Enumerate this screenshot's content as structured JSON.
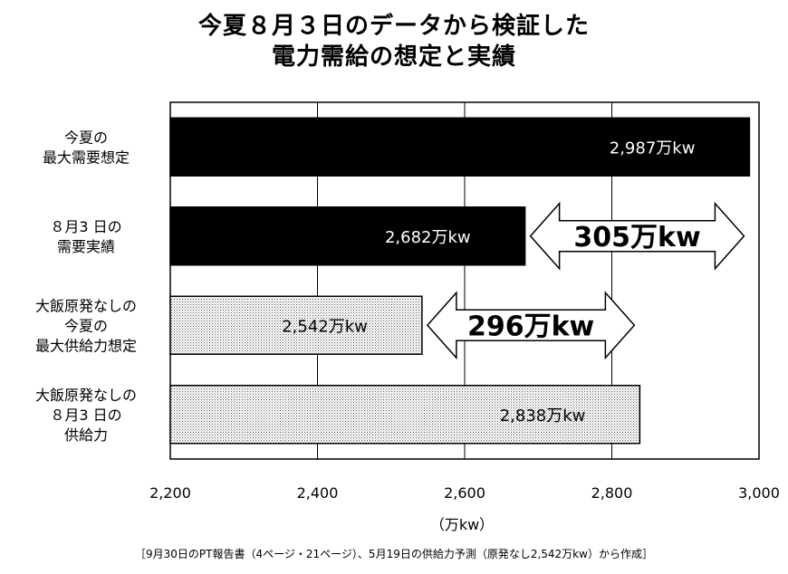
{
  "chart_data": {
    "type": "bar",
    "orientation": "horizontal",
    "title_lines": [
      "今夏８月３日のデータから検証した",
      "電力需給の想定と実績"
    ],
    "categories": [
      [
        "今夏の",
        "最大需要想定"
      ],
      [
        "８月3 日の",
        "需要実績"
      ],
      [
        "大飯原発なしの",
        "今夏の",
        "最大供給力想定"
      ],
      [
        "大飯原発なしの",
        "８月3 日の",
        "供給力"
      ]
    ],
    "values": [
      2987,
      2682,
      2542,
      2838
    ],
    "value_labels": [
      "2,987万kw",
      "2,682万kw",
      "2,542万kw",
      "2,838万kw"
    ],
    "bar_fills": [
      "#000000",
      "#000000",
      "dotted",
      "dotted"
    ],
    "xlim": [
      2200,
      3000
    ],
    "xticks": [
      2200,
      2400,
      2600,
      2800,
      3000
    ],
    "xtick_labels": [
      "2,200",
      "2,400",
      "2,600",
      "2,800",
      "3,000"
    ],
    "xlabel": "（万kw）",
    "grid": true,
    "annotations": [
      {
        "text": "305万kw",
        "from": 2682,
        "to": 2987,
        "between_rows": [
          1
        ]
      },
      {
        "text": "296万kw",
        "from": 2542,
        "to": 2838,
        "between_rows": [
          2
        ]
      }
    ],
    "source": "［9月30日のPT報告書（4ページ・21ページ）、5月19日の供給力予測（原発なし2,542万kw）から作成］"
  }
}
